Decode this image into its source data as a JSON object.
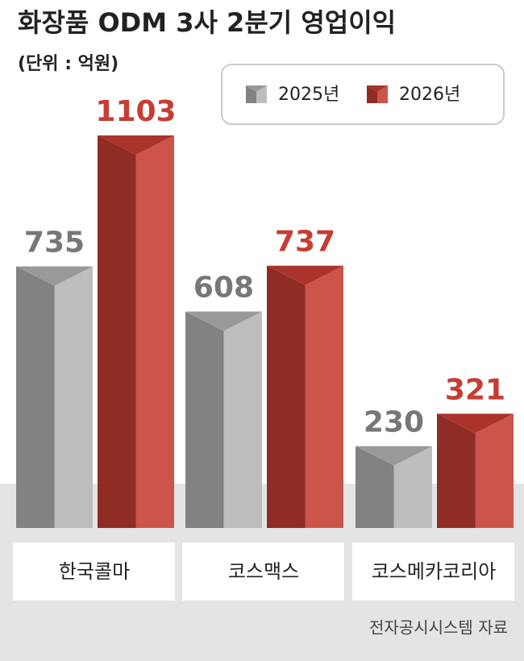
{
  "chart_data": {
    "type": "bar",
    "title": "화장품 ODM 3사 2분기 영업이익",
    "subtitle": "(단위 : 억원)",
    "categories": [
      "한국콜마",
      "코스맥스",
      "코스메카코리아"
    ],
    "series": [
      {
        "name": "2025년",
        "color": "#b4b4b4",
        "values": [
          735,
          608,
          230
        ]
      },
      {
        "name": "2026년",
        "color": "#c63d33",
        "values": [
          1103,
          737,
          321
        ]
      }
    ],
    "source": "전자공시시스템 자료"
  }
}
